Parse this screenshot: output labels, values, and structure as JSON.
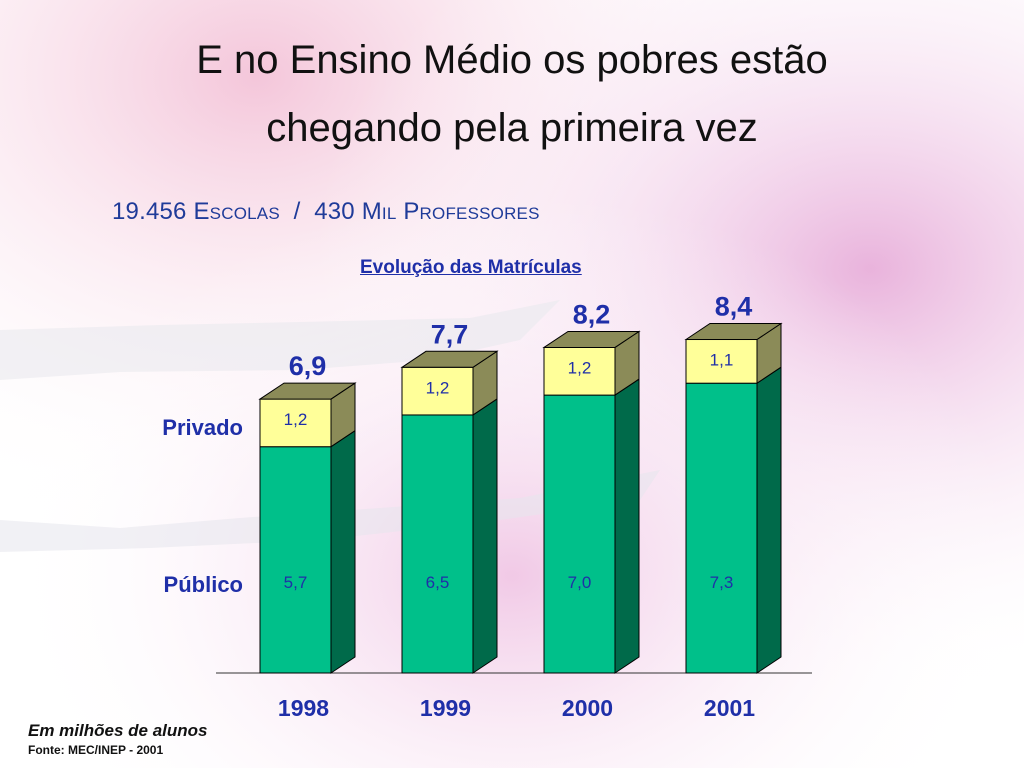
{
  "slide": {
    "title_line1": "E no Ensino Médio os pobres estão",
    "title_line2": "chegando pela primeira vez",
    "subtitle": "19.456 Escolas  /  430 Mil Professores",
    "note": "Em milhões de alunos",
    "source": "Fonte: MEC/INEP - 2001"
  },
  "colors": {
    "publico_front": "#00c08a",
    "publico_side": "#006a4a",
    "privado_front": "#ffff99",
    "privado_side": "#8b8b58",
    "total_label": "#1f2fa8",
    "segment_label": "#1f2fa8"
  },
  "chart_data": {
    "type": "bar",
    "stacked": true,
    "title": "Evolução das Matrículas",
    "categories": [
      "1998",
      "1999",
      "2000",
      "2001"
    ],
    "series": [
      {
        "name": "Público",
        "values": [
          5.7,
          6.5,
          7.0,
          7.3
        ],
        "labels": [
          "5,7",
          "6,5",
          "7,0",
          "7,3"
        ]
      },
      {
        "name": "Privado",
        "values": [
          1.2,
          1.2,
          1.2,
          1.1
        ],
        "labels": [
          "1,2",
          "1,2",
          "1,2",
          "1,1"
        ]
      }
    ],
    "totals": [
      6.9,
      7.7,
      8.2,
      8.4
    ],
    "total_labels": [
      "6,9",
      "7,7",
      "8,2",
      "8,4"
    ],
    "ylim": [
      0,
      8.8
    ]
  }
}
